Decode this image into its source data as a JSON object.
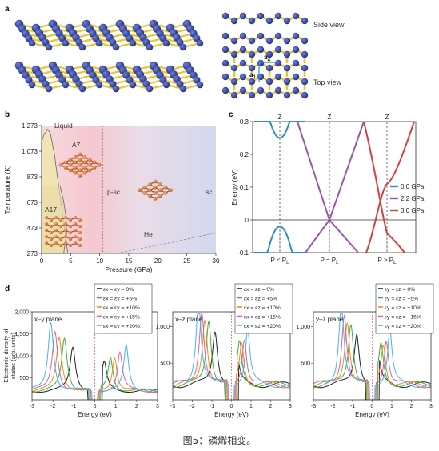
{
  "caption": "图5：磷烯相变。",
  "panel_a": {
    "label": "a",
    "side_view": "Side view",
    "top_view": "Top view",
    "lattice_vec_1": "a",
    "lattice_vec_1_sub": "1",
    "lattice_vec_2": "a",
    "lattice_vec_2_sub": "2",
    "colors": {
      "atom": "#2f3f9e",
      "bond": "#e8c832"
    }
  },
  "panel_b": {
    "label": "b",
    "regions": {
      "liquid": "Liquid",
      "a7": "A7",
      "a17": "A17",
      "psc": "p-sc",
      "sc": "sc",
      "he": "He"
    }
  },
  "panel_c": {
    "label": "c"
  },
  "panel_d": {
    "label": "d"
  },
  "chart_data": [
    {
      "id": "b",
      "type": "area",
      "xlabel": "Pressure (GPa)",
      "ylabel": "Temperature (K)",
      "xlim": [
        0,
        30
      ],
      "ylim": [
        273,
        1273
      ],
      "xticks": [
        0,
        5,
        10,
        15,
        20,
        25,
        30
      ],
      "yticks": [
        "273",
        "473",
        "673",
        "873",
        "1,073",
        "1,273"
      ],
      "ytick_values": [
        273,
        473,
        673,
        873,
        1073,
        1273
      ],
      "liquid_boundary": [
        [
          0,
          273
        ],
        [
          0,
          1150
        ],
        [
          0.4,
          1200
        ],
        [
          1,
          1245
        ],
        [
          1.5,
          1215
        ],
        [
          2.2,
          1050
        ],
        [
          3,
          780
        ],
        [
          3.8,
          520
        ],
        [
          4.5,
          273
        ]
      ],
      "a17_a7_boundary": [
        [
          3.8,
          273
        ],
        [
          4.3,
          430
        ],
        [
          4.2,
          560
        ],
        [
          3.8,
          680
        ],
        [
          3.2,
          800
        ]
      ],
      "a7_psc_boundary_x": 10.5,
      "he_boundary": [
        [
          13,
          273
        ],
        [
          18,
          320
        ],
        [
          23,
          365
        ],
        [
          27,
          405
        ],
        [
          30,
          435
        ]
      ]
    },
    {
      "id": "c",
      "type": "line",
      "ylabel": "Energy (eV)",
      "ylim": [
        -0.1,
        0.3
      ],
      "yticks": [
        -0.1,
        0,
        0.1,
        0.2,
        0.3
      ],
      "ytick_labels": [
        "-0.1",
        "0",
        "0.1",
        "0.2",
        "0.3"
      ],
      "top_labels": [
        "Z",
        "Z",
        "Z"
      ],
      "xtick_labels": [
        "P < P",
        "P = P",
        "P > P"
      ],
      "xtick_sub": "L",
      "series": [
        {
          "name": "0.0 GPa",
          "color": "#2e8fc4"
        },
        {
          "name": "2.2 GPa",
          "color": "#9b54b0"
        },
        {
          "name": "3.0 GPa",
          "color": "#d1403e"
        }
      ],
      "gap_0GPa": {
        "cb_min": 0.25,
        "vb_max": -0.02
      }
    },
    {
      "id": "d",
      "type": "line",
      "xlabel": "Energy (eV)",
      "ylabel": "Electronic density of states (arb. units)",
      "ylabel_lines": [
        "Electronic density of",
        "states (arb. units)"
      ],
      "xlim": [
        -3,
        3
      ],
      "xticks": [
        -3,
        -2,
        -1,
        0,
        1,
        2,
        3
      ],
      "xtick_labels": [
        "-3",
        "-2",
        "-1",
        "0",
        "1",
        "2",
        "3"
      ],
      "subplots": [
        {
          "plane": "x–y plane",
          "ylim": [
            0,
            2000
          ],
          "yticks": [
            500,
            1000,
            1500,
            2000
          ],
          "ytick_labels": [
            "500",
            "1,000",
            "1,500",
            "2,000"
          ],
          "legend_axes": [
            "x",
            "y"
          ],
          "peak_mult": 1.0
        },
        {
          "plane": "x–z plane",
          "ylim": [
            0,
            1200
          ],
          "yticks": [
            500,
            1000
          ],
          "ytick_labels": [
            "500",
            "1,000"
          ],
          "legend_axes": [
            "x",
            "z"
          ],
          "peak_mult": 0.75
        },
        {
          "plane": "y–z plane",
          "ylim": [
            0,
            1200
          ],
          "yticks": [
            500,
            1000
          ],
          "ytick_labels": [
            "500",
            "1,000"
          ],
          "legend_axes": [
            "y",
            "z"
          ],
          "peak_mult": 0.72
        }
      ],
      "series": [
        {
          "name": "0%",
          "color": "#222222"
        },
        {
          "name": "+5%",
          "color": "#3cae4a"
        },
        {
          "name": "+10%",
          "color": "#f28c1e"
        },
        {
          "name": "+15%",
          "color": "#e0609c"
        },
        {
          "name": "+20%",
          "color": "#4ab4e6"
        }
      ],
      "peaks_neg": [
        -1.05,
        -1.45,
        -1.7,
        -1.9,
        -2.1
      ],
      "peaks_pos": [
        0.45,
        0.75,
        0.95,
        1.2,
        1.5
      ],
      "peaks_xy": [
        1050,
        1260,
        1300,
        1450,
        1680
      ]
    }
  ]
}
